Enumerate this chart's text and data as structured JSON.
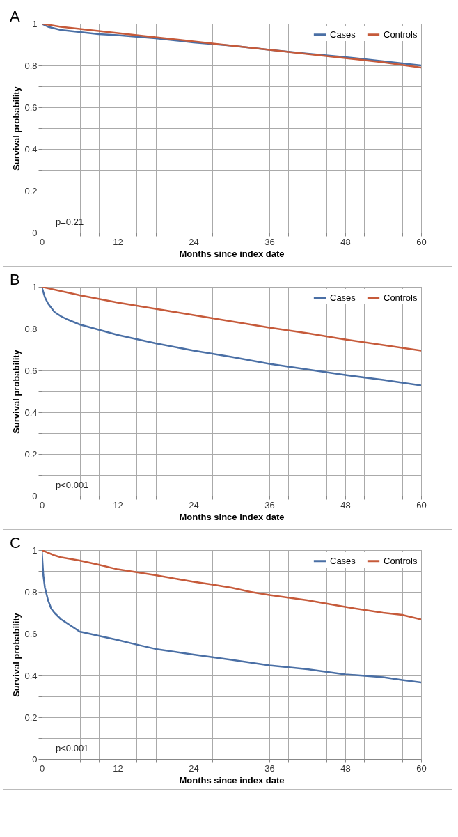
{
  "chart_data": [
    {
      "type": "line",
      "title": "A",
      "xlabel": "Months since index date",
      "ylabel": "Survival probability",
      "annotations": [
        "p=0.21"
      ],
      "xlim": [
        0,
        60
      ],
      "xticks": [
        0,
        {
          "value": 3,
          "label": null
        },
        {
          "value": 6,
          "label": null
        },
        {
          "value": 9,
          "label": null
        },
        12,
        {
          "value": 15,
          "label": null
        },
        {
          "value": 18,
          "label": null
        },
        {
          "value": 21,
          "label": null
        },
        24,
        {
          "value": 27,
          "label": null
        },
        {
          "value": 30,
          "label": null
        },
        {
          "value": 33,
          "label": null
        },
        36,
        {
          "value": 39,
          "label": null
        },
        {
          "value": 42,
          "label": null
        },
        {
          "value": 45,
          "label": null
        },
        48,
        {
          "value": 51,
          "label": null
        },
        {
          "value": 54,
          "label": null
        },
        {
          "value": 57,
          "label": null
        },
        60
      ],
      "ylim": [
        0,
        1
      ],
      "yticks": [
        0,
        {
          "value": 0.1,
          "label": null
        },
        0.2,
        {
          "value": 0.3,
          "label": null
        },
        0.4,
        {
          "value": 0.5,
          "label": null
        },
        0.6,
        {
          "value": 0.7,
          "label": null
        },
        0.8,
        {
          "value": 0.9,
          "label": null
        },
        1
      ],
      "grid": true,
      "legend": "top right",
      "series": [
        {
          "name": "Cases",
          "color": "#4a6fa5",
          "x": [
            0,
            1,
            3,
            6,
            9,
            12,
            18,
            24,
            30,
            36,
            42,
            48,
            54,
            60
          ],
          "values": [
            1,
            0.985,
            0.97,
            0.96,
            0.95,
            0.945,
            0.93,
            0.91,
            0.895,
            0.875,
            0.857,
            0.84,
            0.82,
            0.8
          ]
        },
        {
          "name": "Controls",
          "color": "#c65a3a",
          "x": [
            0,
            3,
            6,
            12,
            18,
            24,
            30,
            36,
            42,
            48,
            54,
            60
          ],
          "values": [
            1,
            0.985,
            0.975,
            0.955,
            0.935,
            0.915,
            0.895,
            0.875,
            0.855,
            0.835,
            0.815,
            0.79
          ]
        }
      ]
    },
    {
      "type": "line",
      "title": "B",
      "xlabel": "Months since index date",
      "ylabel": "Survival probability",
      "annotations": [
        "p<0.001"
      ],
      "xlim": [
        0,
        60
      ],
      "xticks": [
        0,
        {
          "value": 3,
          "label": null
        },
        {
          "value": 6,
          "label": null
        },
        {
          "value": 9,
          "label": null
        },
        12,
        {
          "value": 15,
          "label": null
        },
        {
          "value": 18,
          "label": null
        },
        {
          "value": 21,
          "label": null
        },
        24,
        {
          "value": 27,
          "label": null
        },
        {
          "value": 30,
          "label": null
        },
        {
          "value": 33,
          "label": null
        },
        36,
        {
          "value": 39,
          "label": null
        },
        {
          "value": 42,
          "label": null
        },
        {
          "value": 45,
          "label": null
        },
        48,
        {
          "value": 51,
          "label": null
        },
        {
          "value": 54,
          "label": null
        },
        {
          "value": 57,
          "label": null
        },
        60
      ],
      "ylim": [
        0,
        1
      ],
      "yticks": [
        0,
        {
          "value": 0.1,
          "label": null
        },
        0.2,
        {
          "value": 0.3,
          "label": null
        },
        0.4,
        {
          "value": 0.5,
          "label": null
        },
        0.6,
        {
          "value": 0.7,
          "label": null
        },
        0.8,
        {
          "value": 0.9,
          "label": null
        },
        1
      ],
      "grid": true,
      "legend": "top right",
      "series": [
        {
          "name": "Cases",
          "color": "#4a6fa5",
          "x": [
            0,
            0.5,
            1,
            2,
            3,
            4,
            6,
            9,
            12,
            18,
            24,
            30,
            36,
            42,
            48,
            54,
            60
          ],
          "values": [
            1,
            0.95,
            0.92,
            0.88,
            0.86,
            0.845,
            0.82,
            0.795,
            0.77,
            0.73,
            0.695,
            0.665,
            0.632,
            0.605,
            0.578,
            0.555,
            0.528
          ]
        },
        {
          "name": "Controls",
          "color": "#c65a3a",
          "x": [
            0,
            6,
            12,
            18,
            24,
            30,
            36,
            42,
            48,
            54,
            60
          ],
          "values": [
            1,
            0.96,
            0.925,
            0.895,
            0.865,
            0.835,
            0.805,
            0.778,
            0.748,
            0.722,
            0.695
          ]
        }
      ]
    },
    {
      "type": "line",
      "title": "C",
      "xlabel": "Months since index date",
      "ylabel": "Survival probability",
      "annotations": [
        "p<0.001"
      ],
      "xlim": [
        0,
        60
      ],
      "xticks": [
        0,
        {
          "value": 3,
          "label": null
        },
        {
          "value": 6,
          "label": null
        },
        {
          "value": 9,
          "label": null
        },
        12,
        {
          "value": 15,
          "label": null
        },
        {
          "value": 18,
          "label": null
        },
        {
          "value": 21,
          "label": null
        },
        24,
        {
          "value": 27,
          "label": null
        },
        {
          "value": 30,
          "label": null
        },
        {
          "value": 33,
          "label": null
        },
        36,
        {
          "value": 39,
          "label": null
        },
        {
          "value": 42,
          "label": null
        },
        {
          "value": 45,
          "label": null
        },
        48,
        {
          "value": 51,
          "label": null
        },
        {
          "value": 54,
          "label": null
        },
        {
          "value": 57,
          "label": null
        },
        60
      ],
      "ylim": [
        0,
        1
      ],
      "yticks": [
        0,
        {
          "value": 0.1,
          "label": null
        },
        0.2,
        {
          "value": 0.3,
          "label": null
        },
        0.4,
        {
          "value": 0.5,
          "label": null
        },
        0.6,
        {
          "value": 0.7,
          "label": null
        },
        0.8,
        {
          "value": 0.9,
          "label": null
        },
        1
      ],
      "grid": true,
      "legend": "top right",
      "series": [
        {
          "name": "Cases",
          "color": "#4a6fa5",
          "x": [
            0,
            0.25,
            0.5,
            1,
            1.5,
            2,
            3,
            4,
            6,
            9,
            12,
            15,
            18,
            24,
            30,
            36,
            42,
            48,
            54,
            57,
            60
          ],
          "values": [
            1,
            0.88,
            0.82,
            0.76,
            0.72,
            0.7,
            0.67,
            0.65,
            0.61,
            0.59,
            0.57,
            0.548,
            0.527,
            0.5,
            0.475,
            0.448,
            0.43,
            0.405,
            0.392,
            0.378,
            0.367
          ]
        },
        {
          "name": "Controls",
          "color": "#c65a3a",
          "x": [
            0,
            2,
            3,
            6,
            9,
            12,
            18,
            24,
            27,
            30,
            33,
            36,
            42,
            48,
            54,
            57,
            60
          ],
          "values": [
            1,
            0.975,
            0.966,
            0.95,
            0.93,
            0.908,
            0.88,
            0.848,
            0.835,
            0.82,
            0.8,
            0.785,
            0.76,
            0.728,
            0.7,
            0.69,
            0.668
          ]
        }
      ]
    }
  ]
}
